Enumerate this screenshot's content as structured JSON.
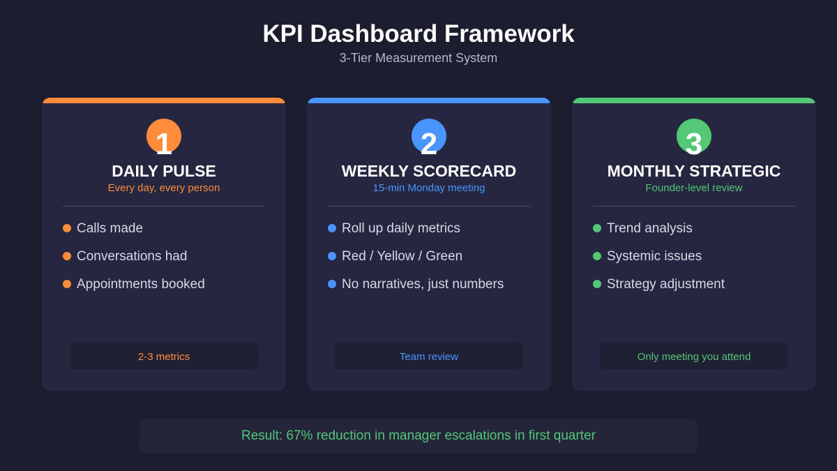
{
  "header": {
    "title": "KPI Dashboard Framework",
    "subtitle": "3-Tier Measurement System"
  },
  "colors": {
    "orange": "#ff8c3a",
    "blue": "#4a94ff",
    "green": "#52c776"
  },
  "tiers": [
    {
      "number": "1",
      "title": "DAILY PULSE",
      "subtitle": "Every day, every person",
      "items": [
        "Calls made",
        "Conversations had",
        "Appointments booked"
      ],
      "footer": "2-3 metrics",
      "accent": "#ff8c3a"
    },
    {
      "number": "2",
      "title": "WEEKLY SCORECARD",
      "subtitle": "15-min Monday meeting",
      "items": [
        "Roll up daily metrics",
        "Red / Yellow / Green",
        "No narratives, just numbers"
      ],
      "footer": "Team review",
      "accent": "#4a94ff"
    },
    {
      "number": "3",
      "title": "MONTHLY STRATEGIC",
      "subtitle": "Founder-level review",
      "items": [
        "Trend analysis",
        "Systemic issues",
        "Strategy adjustment"
      ],
      "footer": "Only meeting you attend",
      "accent": "#52c776"
    }
  ],
  "result": {
    "text": "Result: 67% reduction in manager escalations in first quarter",
    "color": "#52c776"
  }
}
